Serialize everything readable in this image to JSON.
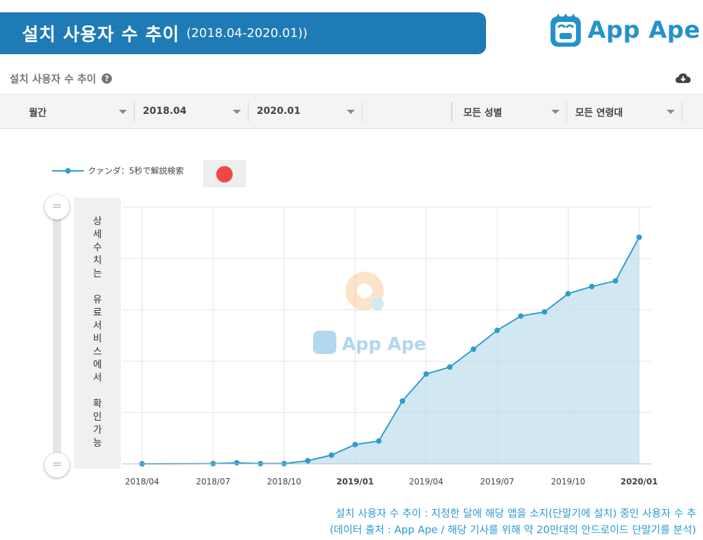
{
  "banner": {
    "title": "설치 사용자 수 추이",
    "subtitle": "(2018.04-2020.01))"
  },
  "logo": {
    "text": "App Ape"
  },
  "subheader": {
    "title": "설치 사용자 수 추이",
    "help_icon": "question-circle-icon",
    "download_icon": "cloud-download-icon"
  },
  "filters": {
    "period": "월간",
    "start": "2018.04",
    "end": "2020.01",
    "gender": "모든 성별",
    "age": "모든 연령대"
  },
  "legend": {
    "series_label": "クァンダ：5秒で解説検索",
    "flag_color": "#f04848"
  },
  "premium_notice": [
    "상",
    "세",
    "수",
    "치",
    "는",
    "",
    "유",
    "료",
    "서",
    "비",
    "스",
    "에",
    "서",
    "",
    "확",
    "인",
    "가",
    "능"
  ],
  "watermark": "App Ape",
  "chart_data": {
    "type": "area",
    "series": [
      {
        "name": "クァンダ：5秒で解説検索",
        "color": "#2f9ccb",
        "x": [
          "2018.04",
          "2018.05",
          "2018.06",
          "2018.07",
          "2018.08",
          "2018.09",
          "2018.10",
          "2018.11",
          "2018.12",
          "2019.01",
          "2019.02",
          "2019.03",
          "2019.04",
          "2019.05",
          "2019.06",
          "2019.07",
          "2019.08",
          "2019.09",
          "2019.10",
          "2019.11",
          "2019.12",
          "2020.01"
        ],
        "values": [
          0,
          null,
          null,
          0.1,
          0.4,
          0.1,
          0.1,
          1.2,
          3.4,
          7.5,
          8.9,
          24.5,
          35.0,
          37.7,
          44.7,
          52.0,
          57.6,
          59.2,
          66.3,
          69.1,
          71.3,
          88.3
        ]
      }
    ],
    "x_ticks": [
      "2018/04",
      "2018/07",
      "2018/10",
      "2019/01",
      "2019/04",
      "2019/07",
      "2019/10",
      "2020/01"
    ],
    "x_ticks_bold": [
      "2019/01",
      "2020/01"
    ],
    "ylim": [
      0,
      100
    ],
    "y_gridlines": 5,
    "grid": true,
    "legend_position": "top-left"
  },
  "footnote": {
    "line1": "설치 사용자 수 추이 : 지정한 달에 해당 앱을 소지(단말기에 설치) 중인 사용자 수 추",
    "line2": "(데이터 출처 : App Ape / 해당 기사를 위해 약 20만대의 안드로이드 단말기를 분석)"
  }
}
